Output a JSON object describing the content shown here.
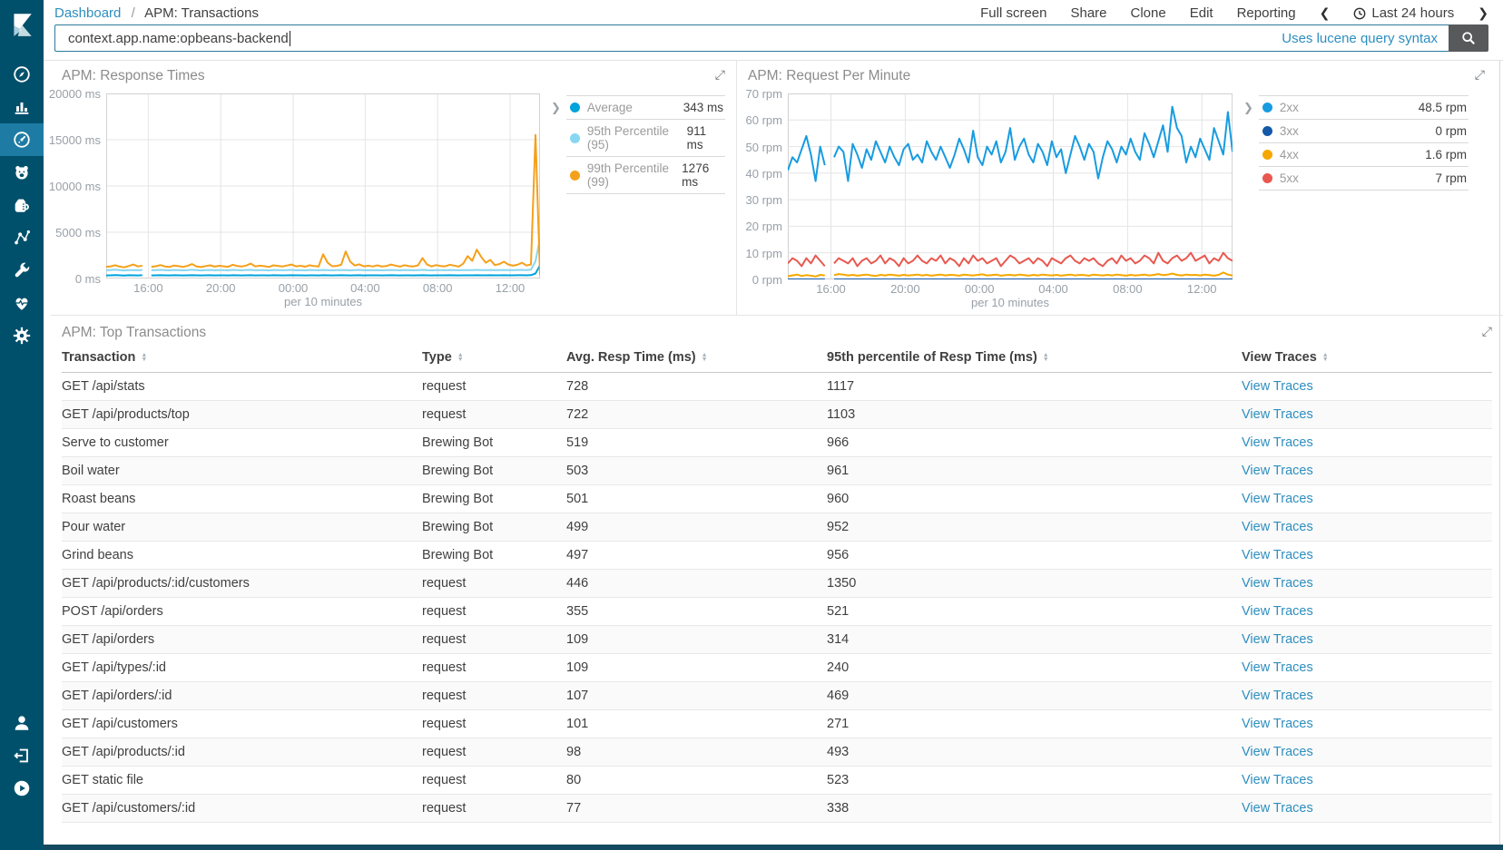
{
  "header": {
    "breadcrumb": {
      "link": "Dashboard",
      "separator": "/",
      "current": "APM: Transactions"
    },
    "actions": [
      "Full screen",
      "Share",
      "Clone",
      "Edit",
      "Reporting"
    ],
    "time_picker": {
      "label": "Last 24 hours"
    }
  },
  "search": {
    "value": "context.app.name:opbeans-backend",
    "hint": "Uses lucene query syntax"
  },
  "sidebar": {
    "items": [
      {
        "icon": "compass-icon",
        "active": false
      },
      {
        "icon": "bar-chart-icon",
        "active": false
      },
      {
        "icon": "gauge-icon",
        "active": true
      },
      {
        "icon": "bear-icon",
        "active": false
      },
      {
        "icon": "pitcher-icon",
        "active": false
      },
      {
        "icon": "graph-nodes-icon",
        "active": false
      },
      {
        "icon": "wrench-icon",
        "active": false
      },
      {
        "icon": "heartbeat-icon",
        "active": false
      },
      {
        "icon": "gear-icon",
        "active": false
      }
    ],
    "bottom_items": [
      {
        "icon": "user-icon"
      },
      {
        "icon": "logout-icon"
      },
      {
        "icon": "play-circle-icon"
      }
    ]
  },
  "colors": {
    "sidebar": "#00506b",
    "sidebar_active": "#1e7ca4",
    "link": "#2d8ebf",
    "avg": "#00a3dc",
    "p95": "#87d7f3",
    "p99": "#f5a01b",
    "s2xx": "#189ce0",
    "s3xx": "#1458a7",
    "s4xx": "#f5a700",
    "s5xx": "#e8584f"
  },
  "panels": {
    "top_transactions": {
      "title": "APM: Top Transactions",
      "columns": [
        "Transaction",
        "Type",
        "Avg. Resp Time (ms)",
        "95th percentile of Resp Time (ms)",
        "View Traces"
      ],
      "link_label": "View Traces",
      "rows": [
        {
          "transaction": "GET /api/stats",
          "type": "request",
          "avg": "728",
          "p95": "1117"
        },
        {
          "transaction": "GET /api/products/top",
          "type": "request",
          "avg": "722",
          "p95": "1103"
        },
        {
          "transaction": "Serve to customer",
          "type": "Brewing Bot",
          "avg": "519",
          "p95": "966"
        },
        {
          "transaction": "Boil water",
          "type": "Brewing Bot",
          "avg": "503",
          "p95": "961"
        },
        {
          "transaction": "Roast beans",
          "type": "Brewing Bot",
          "avg": "501",
          "p95": "960"
        },
        {
          "transaction": "Pour water",
          "type": "Brewing Bot",
          "avg": "499",
          "p95": "952"
        },
        {
          "transaction": "Grind beans",
          "type": "Brewing Bot",
          "avg": "497",
          "p95": "956"
        },
        {
          "transaction": "GET /api/products/:id/customers",
          "type": "request",
          "avg": "446",
          "p95": "1350"
        },
        {
          "transaction": "POST /api/orders",
          "type": "request",
          "avg": "355",
          "p95": "521"
        },
        {
          "transaction": "GET /api/orders",
          "type": "request",
          "avg": "109",
          "p95": "314"
        },
        {
          "transaction": "GET /api/types/:id",
          "type": "request",
          "avg": "109",
          "p95": "240"
        },
        {
          "transaction": "GET /api/orders/:id",
          "type": "request",
          "avg": "107",
          "p95": "469"
        },
        {
          "transaction": "GET /api/customers",
          "type": "request",
          "avg": "101",
          "p95": "271"
        },
        {
          "transaction": "GET /api/products/:id",
          "type": "request",
          "avg": "98",
          "p95": "493"
        },
        {
          "transaction": "GET static file",
          "type": "request",
          "avg": "80",
          "p95": "523"
        },
        {
          "transaction": "GET /api/customers/:id",
          "type": "request",
          "avg": "77",
          "p95": "338"
        }
      ]
    }
  },
  "chart_data": [
    {
      "id": "response-times",
      "type": "line",
      "title": "APM: Response Times",
      "xlabel": "per 10 minutes",
      "ylim": [
        0,
        20000
      ],
      "yticks": [
        {
          "v": 0,
          "label": "0 ms"
        },
        {
          "v": 5000,
          "label": "5000 ms"
        },
        {
          "v": 10000,
          "label": "10000 ms"
        },
        {
          "v": 15000,
          "label": "15000 ms"
        },
        {
          "v": 20000,
          "label": "20000 ms"
        }
      ],
      "xticks": [
        {
          "pos": 0.097,
          "label": "16:00"
        },
        {
          "pos": 0.264,
          "label": "20:00"
        },
        {
          "pos": 0.431,
          "label": "00:00"
        },
        {
          "pos": 0.597,
          "label": "04:00"
        },
        {
          "pos": 0.764,
          "label": "08:00"
        },
        {
          "pos": 0.931,
          "label": "12:00"
        }
      ],
      "legend_position": "right",
      "grid": true,
      "series": [
        {
          "name": "Average",
          "color": "#00a3dc",
          "legend_value": "343 ms",
          "values": [
            332,
            348,
            361,
            340,
            326,
            351,
            343,
            337,
            349,
            null,
            336,
            341,
            353,
            345,
            335,
            349,
            342,
            333,
            347,
            355,
            339,
            331,
            344,
            350,
            337,
            346,
            340,
            334,
            352,
            343,
            338,
            347,
            354,
            336,
            345,
            340,
            332,
            349,
            342,
            337,
            346,
            352,
            339,
            344,
            335,
            348,
            341,
            338,
            351,
            345,
            336,
            342,
            349,
            340,
            334,
            347,
            353,
            338,
            344,
            339,
            346,
            337,
            341,
            350,
            344,
            335,
            348,
            340,
            338,
            345,
            351,
            342,
            336,
            347,
            341,
            339,
            349,
            344,
            337,
            346,
            340,
            343,
            353,
            348,
            345,
            350,
            341,
            347,
            351,
            346,
            343,
            349,
            353,
            347,
            362,
            540,
            1420
          ]
        },
        {
          "name": "95th Percentile (95)",
          "color": "#87d7f3",
          "legend_value": "911 ms",
          "values": [
            878,
            921,
            952,
            906,
            869,
            916,
            901,
            889,
            926,
            null,
            896,
            911,
            931,
            903,
            884,
            919,
            909,
            879,
            913,
            941,
            899,
            874,
            906,
            921,
            891,
            916,
            901,
            884,
            931,
            909,
            896,
            919,
            936,
            889,
            913,
            906,
            877,
            921,
            911,
            893,
            916,
            929,
            897,
            909,
            884,
            919,
            906,
            889,
            926,
            913,
            887,
            906,
            923,
            901,
            879,
            916,
            931,
            896,
            909,
            889,
            916,
            884,
            903,
            926,
            911,
            881,
            919,
            901,
            893,
            913,
            929,
            906,
            887,
            916,
            903,
            896,
            921,
            909,
            889,
            913,
            899,
            906,
            931,
            916,
            909,
            923,
            901,
            913,
            926,
            916,
            906,
            919,
            929,
            913,
            952,
            1850,
            4350
          ]
        },
        {
          "name": "99th Percentile (99)",
          "color": "#f5a01b",
          "legend_value": "1276 ms",
          "values": [
            1260,
            1310,
            1430,
            1285,
            1205,
            1355,
            1510,
            1305,
            1385,
            null,
            1265,
            1325,
            1455,
            1305,
            1245,
            1405,
            1335,
            1255,
            1365,
            1560,
            1305,
            1235,
            1345,
            1425,
            1285,
            1375,
            1315,
            1265,
            1485,
            1355,
            1295,
            1405,
            1610,
            1305,
            1385,
            1335,
            1245,
            1425,
            1365,
            1295,
            1405,
            1510,
            1315,
            1375,
            1275,
            1435,
            1345,
            1295,
            2620,
            1710,
            1325,
            1365,
            1485,
            2920,
            1810,
            1405,
            1525,
            1315,
            1385,
            1305,
            1425,
            1295,
            1345,
            1510,
            1395,
            1285,
            1445,
            1335,
            1305,
            1425,
            2210,
            1510,
            1305,
            1455,
            1345,
            1315,
            1485,
            1395,
            1285,
            1610,
            2420,
            1910,
            3120,
            2310,
            1710,
            2010,
            1455,
            1555,
            1810,
            1510,
            1385,
            1485,
            1710,
            1405,
            1520,
            15520,
            360
          ]
        }
      ]
    },
    {
      "id": "requests-per-minute",
      "type": "line",
      "title": "APM: Request Per Minute",
      "xlabel": "per 10 minutes",
      "ylim": [
        0,
        70
      ],
      "yticks": [
        {
          "v": 0,
          "label": "0 rpm"
        },
        {
          "v": 10,
          "label": "10 rpm"
        },
        {
          "v": 20,
          "label": "20 rpm"
        },
        {
          "v": 30,
          "label": "30 rpm"
        },
        {
          "v": 40,
          "label": "40 rpm"
        },
        {
          "v": 50,
          "label": "50 rpm"
        },
        {
          "v": 60,
          "label": "60 rpm"
        },
        {
          "v": 70,
          "label": "70 rpm"
        }
      ],
      "xticks": [
        {
          "pos": 0.097,
          "label": "16:00"
        },
        {
          "pos": 0.264,
          "label": "20:00"
        },
        {
          "pos": 0.431,
          "label": "00:00"
        },
        {
          "pos": 0.597,
          "label": "04:00"
        },
        {
          "pos": 0.764,
          "label": "08:00"
        },
        {
          "pos": 0.931,
          "label": "12:00"
        }
      ],
      "legend_position": "right",
      "grid": true,
      "series": [
        {
          "name": "2xx",
          "color": "#189ce0",
          "legend_value": "48.5 rpm",
          "values": [
            41,
            46,
            44,
            49,
            54,
            47,
            37,
            50,
            43,
            null,
            46,
            50,
            48,
            37,
            51,
            47,
            42,
            49,
            45,
            52,
            48,
            44,
            50,
            46,
            43,
            49,
            51,
            45,
            47,
            44,
            52,
            48,
            45,
            50,
            46,
            42,
            47,
            53,
            49,
            44,
            56,
            46,
            43,
            50,
            47,
            52,
            44,
            48,
            57,
            45,
            50,
            53,
            47,
            44,
            51,
            48,
            43,
            52,
            46,
            49,
            40,
            47,
            54,
            50,
            45,
            51,
            48,
            38,
            46,
            52,
            49,
            44,
            50,
            47,
            53,
            48,
            45,
            55,
            51,
            46,
            52,
            58,
            48,
            65,
            57,
            54,
            44,
            50,
            46,
            53,
            49,
            45,
            57,
            52,
            47,
            63,
            48
          ]
        },
        {
          "name": "3xx",
          "color": "#1458a7",
          "legend_value": "0 rpm",
          "values": [
            0,
            0,
            0,
            0,
            0,
            0,
            0,
            0,
            0,
            null,
            0,
            0,
            0,
            0,
            0,
            0,
            0,
            0,
            0,
            0,
            0,
            0,
            0,
            0,
            0,
            0,
            0,
            0,
            0,
            0,
            0,
            0,
            0,
            0,
            0,
            0,
            0,
            0,
            0,
            0,
            0,
            0,
            0,
            0,
            0,
            0,
            0,
            0,
            0,
            0,
            0,
            0,
            0,
            0,
            0,
            0,
            0,
            0,
            0,
            0,
            0,
            0,
            0,
            0,
            0,
            0,
            0,
            0,
            0,
            0,
            0,
            0,
            0,
            0,
            0,
            0,
            0,
            0,
            0,
            0,
            0,
            0,
            0,
            0,
            0,
            0,
            0,
            0,
            0,
            0,
            0,
            0,
            0,
            0,
            0,
            0,
            0
          ]
        },
        {
          "name": "4xx",
          "color": "#f5a700",
          "legend_value": "1.6 rpm",
          "values": [
            1.2,
            1.5,
            1.8,
            1.3,
            1.6,
            1.4,
            1.1,
            1.7,
            1.5,
            null,
            1.6,
            2.0,
            1.8,
            1.5,
            1.7,
            1.4,
            1.6,
            1.8,
            1.5,
            1.3,
            1.7,
            1.5,
            1.8,
            1.6,
            1.4,
            1.7,
            1.5,
            1.6,
            1.8,
            1.5,
            1.7,
            1.4,
            1.6,
            1.8,
            1.5,
            1.7,
            1.6,
            1.4,
            1.8,
            1.6,
            1.5,
            1.7,
            1.9,
            1.5,
            1.6,
            1.8,
            1.4,
            1.6,
            1.7,
            1.5,
            1.8,
            1.6,
            1.4,
            1.7,
            1.5,
            1.8,
            1.6,
            1.5,
            1.7,
            1.4,
            1.6,
            1.8,
            1.5,
            1.7,
            1.6,
            1.4,
            1.8,
            1.6,
            1.5,
            1.7,
            1.5,
            1.8,
            1.6,
            1.4,
            1.7,
            1.5,
            1.6,
            1.8,
            1.5,
            1.7,
            2.0,
            1.6,
            1.8,
            2.2,
            1.7,
            1.5,
            1.8,
            1.6,
            1.7,
            1.5,
            1.8,
            1.6,
            1.4,
            1.7,
            2.6,
            1.8,
            1.5
          ]
        },
        {
          "name": "5xx",
          "color": "#e8584f",
          "legend_value": "7 rpm",
          "values": [
            6,
            8,
            7,
            5,
            8,
            6,
            9,
            7,
            5,
            null,
            6,
            8,
            7,
            6,
            8,
            5,
            7,
            8,
            6,
            7,
            9,
            6,
            8,
            7,
            5,
            8,
            6,
            7,
            9,
            7,
            6,
            8,
            7,
            9,
            6,
            8,
            7,
            5,
            8,
            6,
            9,
            7,
            8,
            6,
            7,
            8,
            5,
            7,
            9,
            8,
            6,
            7,
            8,
            6,
            8,
            7,
            5,
            8,
            7,
            6,
            8,
            9,
            7,
            6,
            8,
            7,
            8,
            6,
            5,
            7,
            8,
            6,
            9,
            7,
            8,
            6,
            7,
            9,
            8,
            6,
            10,
            7,
            6,
            8,
            9,
            7,
            8,
            10,
            7,
            8,
            9,
            6,
            8,
            7,
            10,
            8,
            7
          ]
        }
      ]
    }
  ]
}
